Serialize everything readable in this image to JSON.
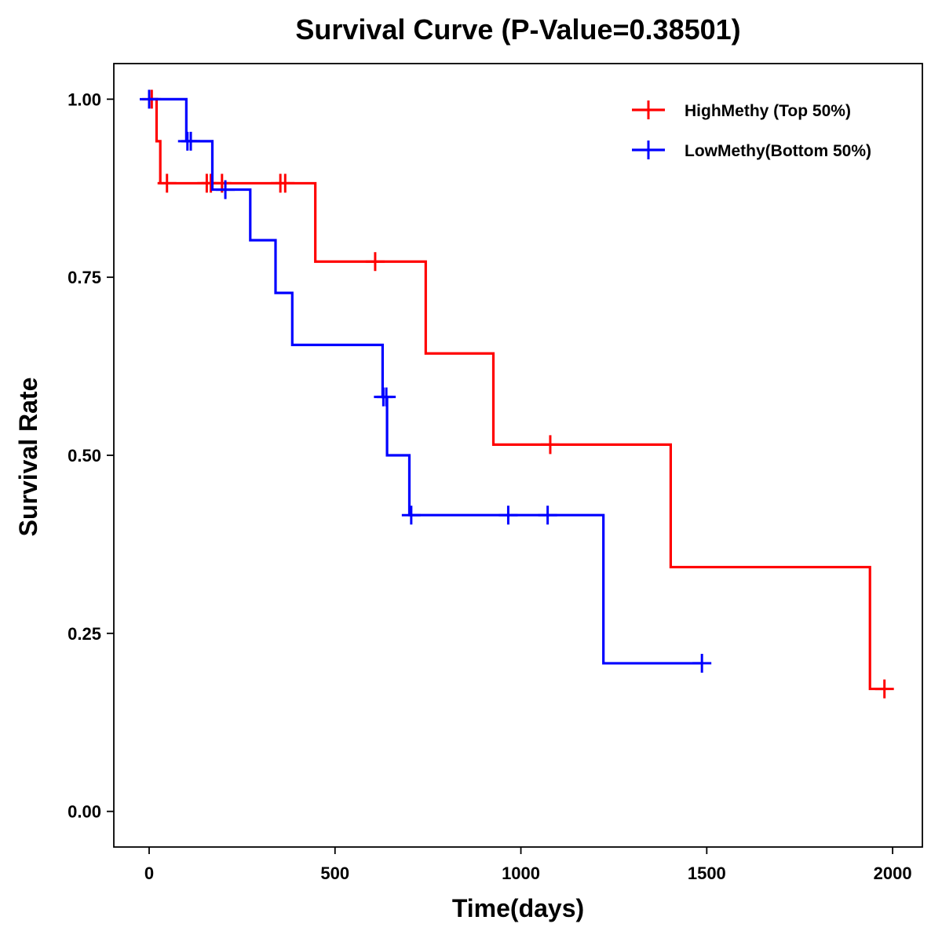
{
  "chart_data": {
    "type": "line",
    "subtype": "kaplan-meier step",
    "title": "Survival Curve (P-Value=0.38501)",
    "xlabel": "Time(days)",
    "ylabel": "Survival Rate",
    "xlim": [
      -95,
      2080
    ],
    "ylim": [
      -0.05,
      1.05
    ],
    "xticks": [
      0,
      500,
      1000,
      1500,
      2000
    ],
    "xtick_labels": [
      "0",
      "500",
      "1000",
      "1500",
      "2000"
    ],
    "yticks": [
      0,
      0.25,
      0.5,
      0.75,
      1.0
    ],
    "ytick_labels": [
      "0.00",
      "0.25",
      "0.50",
      "0.75",
      "1.00"
    ],
    "grid": false,
    "legend_position": "top-right",
    "series": [
      {
        "name": "HighMethy (Top 50%)",
        "color": "#ff0000",
        "steps": [
          [
            0,
            1.0
          ],
          [
            20,
            0.941
          ],
          [
            30,
            0.882
          ],
          [
            447,
            0.772
          ],
          [
            744,
            0.643
          ],
          [
            926,
            0.515
          ],
          [
            1403,
            0.343
          ],
          [
            1939,
            0.172
          ]
        ],
        "end_x": 1978,
        "censored": [
          [
            7,
            1.0
          ],
          [
            48,
            0.882
          ],
          [
            155,
            0.882
          ],
          [
            166,
            0.882
          ],
          [
            196,
            0.882
          ],
          [
            353,
            0.882
          ],
          [
            366,
            0.882
          ],
          [
            608,
            0.772
          ],
          [
            1079,
            0.515
          ],
          [
            1978,
            0.172
          ]
        ]
      },
      {
        "name": "LowMethy(Bottom 50%)",
        "color": "#0000ff",
        "steps": [
          [
            0,
            1.0
          ],
          [
            100,
            0.941
          ],
          [
            170,
            0.873
          ],
          [
            272,
            0.802
          ],
          [
            340,
            0.728
          ],
          [
            385,
            0.655
          ],
          [
            628,
            0.582
          ],
          [
            640,
            0.5
          ],
          [
            700,
            0.416
          ],
          [
            1222,
            0.208
          ]
        ],
        "end_x": 1487,
        "censored": [
          [
            0,
            1.0
          ],
          [
            103,
            0.941
          ],
          [
            112,
            0.941
          ],
          [
            205,
            0.873
          ],
          [
            630,
            0.582
          ],
          [
            638,
            0.582
          ],
          [
            705,
            0.416
          ],
          [
            966,
            0.416
          ],
          [
            1072,
            0.416
          ],
          [
            1487,
            0.208
          ]
        ]
      }
    ]
  }
}
